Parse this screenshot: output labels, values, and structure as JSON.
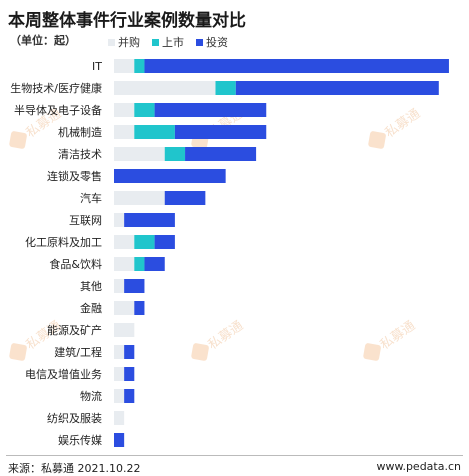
{
  "header": {
    "title": "本周整体事件行业案例数量对比",
    "unit": "（单位：起）"
  },
  "legend": [
    {
      "label": "并购",
      "color": "#e8ecf0"
    },
    {
      "label": "上市",
      "color": "#20c5cc"
    },
    {
      "label": "投资",
      "color": "#2b4de0"
    }
  ],
  "colors": {
    "ma": "#e8ecf0",
    "ipo": "#20c5cc",
    "invest": "#2b4de0"
  },
  "chart_data": {
    "type": "bar",
    "orientation": "horizontal",
    "stacked": true,
    "categories": [
      "IT",
      "生物技术/医疗健康",
      "半导体及电子设备",
      "机械制造",
      "清洁技术",
      "连锁及零售",
      "汽车",
      "互联网",
      "化工原料及加工",
      "食品&饮料",
      "其他",
      "金融",
      "能源及矿产",
      "建筑/工程",
      "电信及增值业务",
      "物流",
      "纺织及服装",
      "娱乐传媒"
    ],
    "series": [
      {
        "name": "并购",
        "values": [
          2,
          10,
          2,
          2,
          5,
          0,
          5,
          1,
          2,
          2,
          1,
          2,
          2,
          1,
          1,
          1,
          1,
          0
        ]
      },
      {
        "name": "上市",
        "values": [
          1,
          2,
          2,
          4,
          2,
          0,
          0,
          0,
          2,
          1,
          0,
          0,
          0,
          0,
          0,
          0,
          0,
          0
        ]
      },
      {
        "name": "投资",
        "values": [
          30,
          20,
          11,
          9,
          7,
          11,
          4,
          5,
          2,
          2,
          2,
          1,
          0,
          1,
          1,
          1,
          0,
          1
        ]
      }
    ],
    "grid": false,
    "legend_position": "top-left"
  },
  "watermark": {
    "text": "私募通"
  },
  "footer": {
    "source": "来源：私募通 2021.10.22",
    "site": "www.pedata.cn"
  }
}
